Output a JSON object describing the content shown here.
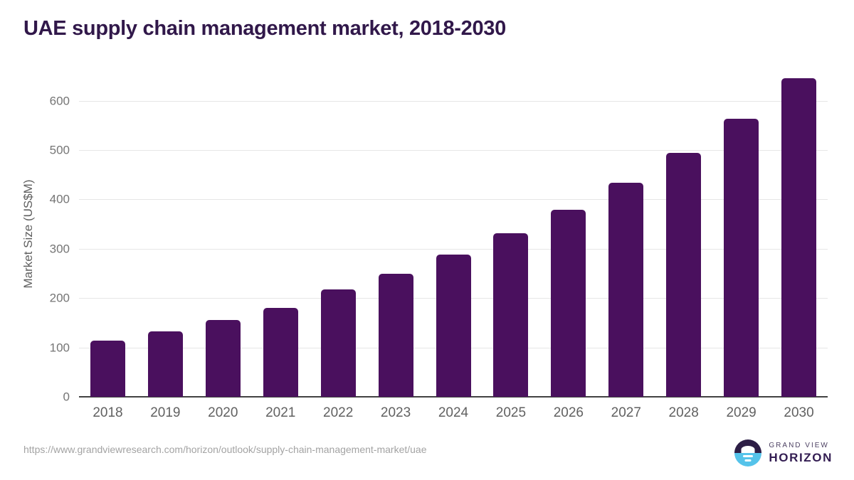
{
  "title": "UAE supply chain management market, 2018-2030",
  "chart_data": {
    "type": "bar",
    "title": "UAE supply chain management market, 2018-2030",
    "categories": [
      "2018",
      "2019",
      "2020",
      "2021",
      "2022",
      "2023",
      "2024",
      "2025",
      "2026",
      "2027",
      "2028",
      "2029",
      "2030"
    ],
    "values": [
      114,
      132,
      155,
      180,
      217,
      250,
      288,
      331,
      379,
      434,
      495,
      564,
      645
    ],
    "xlabel": "",
    "ylabel": "Market Size (US$M)",
    "ylim": [
      0,
      660
    ],
    "yticks": [
      0,
      100,
      200,
      300,
      400,
      500,
      600
    ],
    "grid": "horizontal",
    "legend": "none",
    "bar_color": "#4a105e"
  },
  "footer": {
    "source_url": "https://www.grandviewresearch.com/horizon/outlook/supply-chain-management-market/uae",
    "brand": {
      "line1": "GRAND VIEW",
      "line2": "HORIZON",
      "icon": "horizon-sunset-icon"
    }
  },
  "colors": {
    "bar": "#4a105e",
    "title": "#31184a",
    "gridline": "#e6e6e6",
    "axis_line": "#424242",
    "tick_label": "#757575",
    "x_label": "#616161",
    "source_text": "#a3a3a3",
    "logo_dark": "#2d1e46",
    "logo_blue": "#55c3ea"
  }
}
